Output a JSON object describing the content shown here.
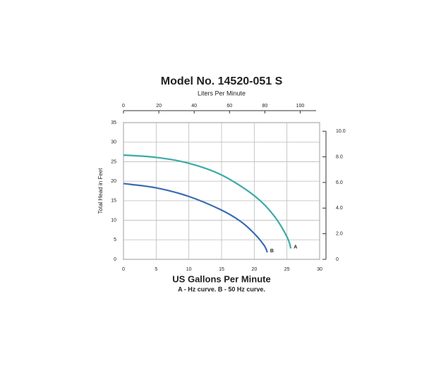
{
  "chart_data": {
    "type": "line",
    "title": "Model No. 14520-051 S",
    "x2_label": "Liters Per Minute",
    "y_label": "Total Head in Feet",
    "x_label": "US Gallons Per Minute",
    "caption": "A - Hz curve. B - 50 Hz curve.",
    "xlim": [
      0,
      30
    ],
    "xticks": [
      0,
      5,
      10,
      15,
      20,
      25,
      30
    ],
    "ylim": [
      0,
      35
    ],
    "yticks": [
      0,
      5,
      10,
      15,
      20,
      25,
      30,
      35
    ],
    "x2lim": [
      0,
      111
    ],
    "x2ticks": [
      0,
      20,
      40,
      60,
      80,
      100
    ],
    "y2lim": [
      0,
      10.67
    ],
    "y2ticks": [
      0,
      {
        "value": 2,
        "label": "2.0"
      },
      {
        "value": 4,
        "label": "4.0"
      },
      {
        "value": 6,
        "label": "6.0"
      },
      {
        "value": 8,
        "label": "8.0"
      },
      {
        "value": 10,
        "label": "10.0"
      }
    ],
    "grid": true,
    "series": [
      {
        "name": "A",
        "color": "#3aaba8",
        "x": [
          0,
          5,
          10,
          15,
          20,
          23,
          25,
          25.6
        ],
        "values": [
          26.7,
          26.1,
          24.6,
          21.6,
          16.3,
          11.2,
          5.8,
          2.8
        ]
      },
      {
        "name": "B",
        "color": "#3a6cb4",
        "x": [
          0,
          5,
          10,
          15,
          18,
          20,
          21.5,
          22
        ],
        "values": [
          19.4,
          18.3,
          16.1,
          12.6,
          9.6,
          6.6,
          3.6,
          1.8
        ]
      }
    ]
  }
}
